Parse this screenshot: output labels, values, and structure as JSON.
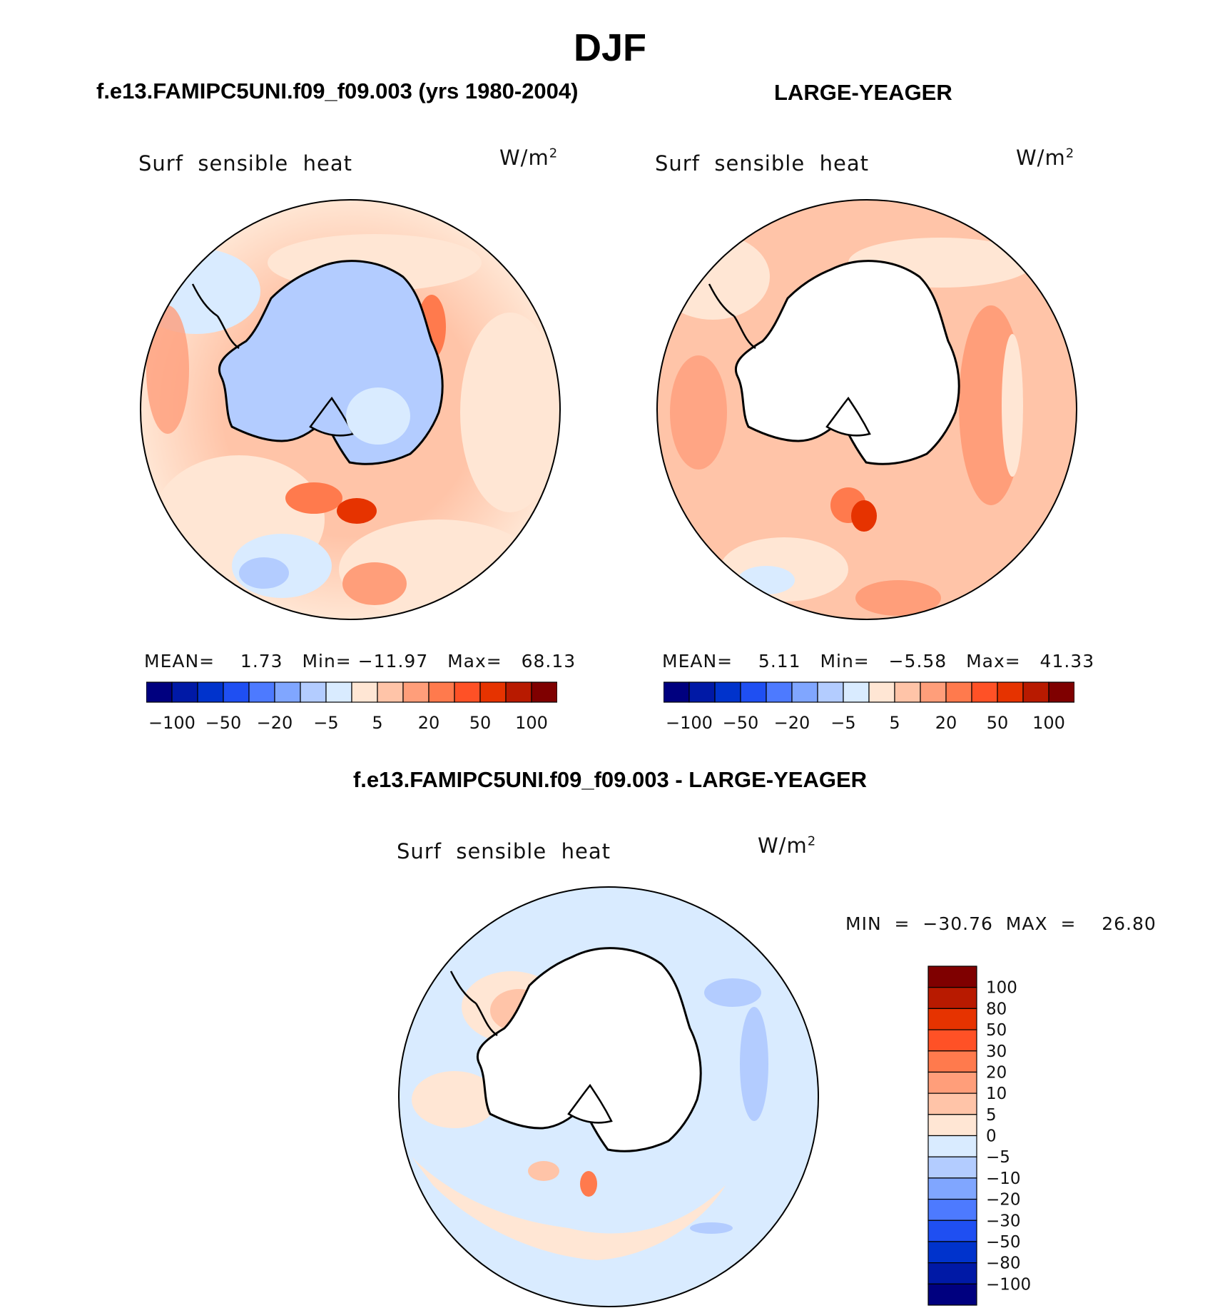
{
  "page": {
    "title": "DJF",
    "panel_top_left_title": "f.e13.FAMIPC5UNI.f09_f09.003 (yrs 1980-2004)",
    "panel_top_right_title": "LARGE-YEAGER",
    "panel_bottom_title": "f.e13.FAMIPC5UNI.f09_f09.003 - LARGE-YEAGER"
  },
  "maps": [
    {
      "variable": "Surf  sensible  heat",
      "units": "W/m",
      "units_sup": "2",
      "stats": {
        "mean_label": "MEAN=",
        "mean": "1.73",
        "min_label": "Min=",
        "min": "−11.97",
        "max_label": "Max=",
        "max": "68.13"
      }
    },
    {
      "variable": "Surf  sensible  heat",
      "units": "W/m",
      "units_sup": "2",
      "stats": {
        "mean_label": "MEAN=",
        "mean": "5.11",
        "min_label": "Min=",
        "min": "−5.58",
        "max_label": "Max=",
        "max": "41.33"
      }
    },
    {
      "variable": "Surf  sensible  heat",
      "units": "W/m",
      "units_sup": "2",
      "stats": {
        "text": "MIN  =  −30.76  MAX  =    26.80"
      }
    }
  ],
  "colorbar_horizontal": {
    "colors": [
      "#00007f",
      "#0019a6",
      "#0033cc",
      "#1f4ff2",
      "#4d7aff",
      "#80a6ff",
      "#b3ccff",
      "#d9ebff",
      "#ffe6d4",
      "#ffc4a8",
      "#ff9e7a",
      "#ff7a4d",
      "#ff5126",
      "#e63300",
      "#b81a00",
      "#7f0000"
    ],
    "tick_labels": [
      "−100",
      "−50",
      "−20",
      "−5",
      "5",
      "20",
      "50",
      "100"
    ]
  },
  "colorbar_vertical": {
    "colors": [
      "#7f0000",
      "#b81a00",
      "#e63300",
      "#ff5126",
      "#ff7a4d",
      "#ff9e7a",
      "#ffc4a8",
      "#ffe6d4",
      "#d9ebff",
      "#b3ccff",
      "#80a6ff",
      "#4d7aff",
      "#1f4ff2",
      "#0033cc",
      "#0019a6",
      "#00007f"
    ],
    "tick_labels": [
      "100",
      "80",
      "50",
      "30",
      "20",
      "10",
      "5",
      "0",
      "−5",
      "−10",
      "−20",
      "−30",
      "−50",
      "−80",
      "−100"
    ]
  }
}
